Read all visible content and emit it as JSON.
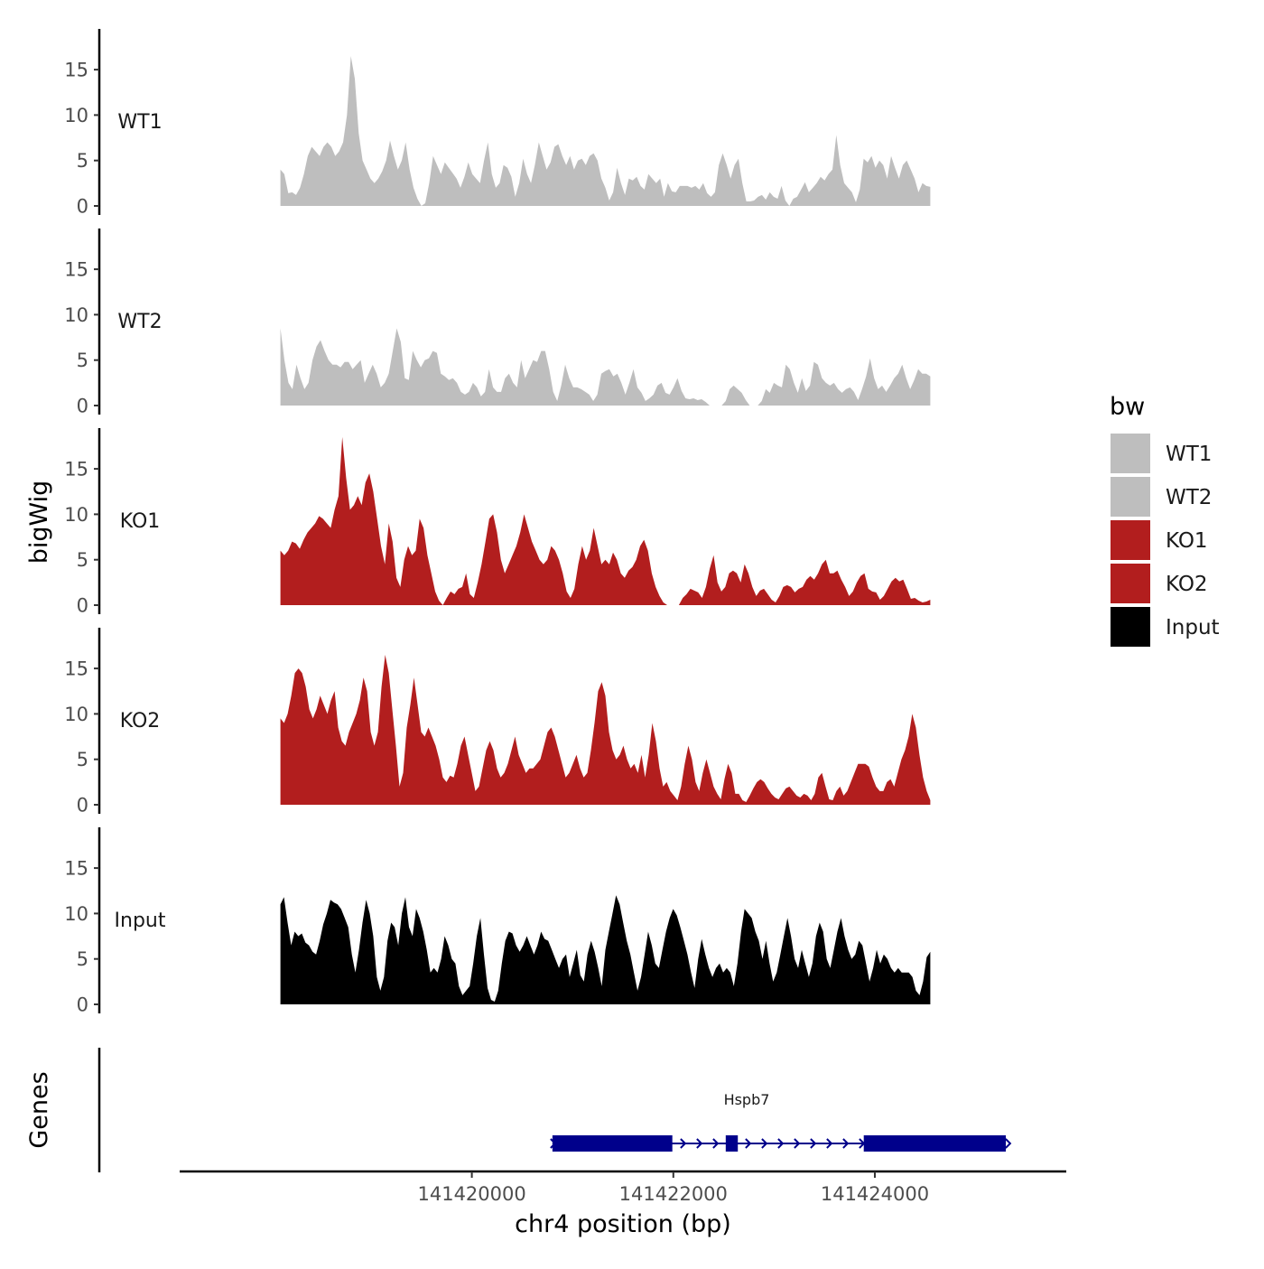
{
  "chart_data": {
    "type": "area",
    "chromosome": "chr4",
    "xlabel": "chr4 position (bp)",
    "ylabel": "bigWig",
    "genes_label": "Genes",
    "xlim": [
      141417100,
      141425900
    ],
    "x_start": 141418100,
    "x_end": 141424550,
    "x_ticks": [
      141420000,
      141422000,
      141424000
    ],
    "x_tick_labels": [
      "141420000",
      "141422000",
      "141424000"
    ],
    "ylim": [
      0,
      19.5
    ],
    "y_ticks": [
      0,
      5,
      10,
      15
    ],
    "y_tick_labels": [
      "0",
      "5",
      "10",
      "15"
    ],
    "colors": {
      "WT1": "#bebebe",
      "WT2": "#bebebe",
      "KO1": "#b21e1e",
      "KO2": "#b21e1e",
      "Input": "#000000",
      "gene": "#00008b"
    },
    "series": [
      {
        "name": "WT1",
        "values": [
          4,
          3.5,
          1.4,
          1.5,
          1.2,
          2,
          3.5,
          5.5,
          6.5,
          6,
          5.5,
          6.5,
          7,
          6.5,
          5.5,
          6,
          7,
          10,
          16.5,
          14,
          8,
          5,
          4,
          3,
          2.5,
          3,
          3.8,
          5,
          7.2,
          5.5,
          4,
          5,
          7,
          4,
          2,
          0.8,
          0,
          0.3,
          2.5,
          5.5,
          4.5,
          3.5,
          4.8,
          4.2,
          3.6,
          3,
          2,
          3.2,
          4.8,
          3.5,
          3,
          2.5,
          5,
          7,
          3.5,
          2,
          2.5,
          4.5,
          4.2,
          3.2,
          1,
          2.5,
          5.2,
          3.5,
          2.5,
          4.5,
          7,
          5.5,
          4,
          4.8,
          6.5,
          6.8,
          5.5,
          4.5,
          5.5,
          4,
          5,
          5.2,
          4.5,
          5.5,
          5.8,
          5,
          3,
          2,
          0.6,
          1.5,
          4.2,
          2.5,
          1.2,
          3,
          2.8,
          3.2,
          2.2,
          1.8,
          3.5,
          3,
          2.5,
          3,
          1,
          2.5,
          1.6,
          1.5,
          2.2,
          2.2,
          2.2,
          2,
          2.2,
          1.8,
          2.5,
          1.4,
          1,
          1.5,
          4.5,
          5.8,
          4.5,
          3,
          4.5,
          5.2,
          2.5,
          0.5,
          0.5,
          0.6,
          1,
          1.2,
          0.7,
          1.5,
          1,
          0.8,
          2.2,
          0.6,
          0,
          0.8,
          1,
          1.8,
          2.6,
          1.5,
          2,
          2.5,
          3.2,
          2.8,
          3.5,
          4,
          7.8,
          4.5,
          2.5,
          2,
          1.5,
          0.4,
          1.8,
          5.2,
          4.8,
          5.5,
          4.2,
          5,
          4.5,
          3,
          5.5,
          4.2,
          3,
          4.5,
          5,
          4,
          3,
          1.5,
          2.5,
          2.2,
          2.1
        ]
      },
      {
        "name": "WT2",
        "values": [
          8.5,
          5,
          2.5,
          1.8,
          4.5,
          3,
          1.8,
          2.5,
          5,
          6.5,
          7.2,
          6,
          5,
          4.5,
          4.5,
          4.2,
          4.8,
          4.8,
          4,
          4.5,
          5,
          2.5,
          3.5,
          4.5,
          3.5,
          2,
          2.5,
          3.5,
          6,
          8.5,
          7,
          3,
          2.8,
          6,
          5,
          4.2,
          5,
          5.2,
          6,
          5.8,
          3.5,
          3.2,
          2.8,
          3,
          2.5,
          1.5,
          1.2,
          1.5,
          2.5,
          2,
          1,
          1.5,
          4,
          2,
          1.5,
          1.5,
          3,
          3.5,
          2.5,
          2,
          5,
          3,
          4,
          5,
          4.8,
          6,
          6,
          4,
          1.5,
          0.5,
          2.2,
          4.5,
          3,
          2,
          2,
          1.8,
          1.5,
          1.2,
          0.5,
          1.2,
          3.5,
          3.8,
          4,
          3.2,
          3.5,
          2.5,
          1.2,
          2.5,
          4,
          2,
          1.4,
          0.5,
          0.8,
          1.2,
          2.2,
          2.5,
          1.4,
          1.2,
          2,
          3,
          1.6,
          0.8,
          0.7,
          0.8,
          0.6,
          0.7,
          0.4,
          0,
          0,
          0,
          0,
          0.5,
          1.8,
          2.2,
          1.8,
          1.4,
          0.6,
          0,
          0,
          0,
          0.5,
          1.8,
          1.4,
          2.5,
          2.2,
          2,
          4.5,
          4,
          2.5,
          1.4,
          3,
          1.6,
          2.2,
          4.8,
          4.5,
          3,
          2.5,
          2.2,
          2.5,
          1.8,
          1.4,
          1.8,
          2,
          1.5,
          0.6,
          1.8,
          3.2,
          5.2,
          3,
          1.8,
          2.2,
          1.5,
          2.2,
          3,
          3.5,
          4.5,
          3,
          1.8,
          2.8,
          4,
          3.5,
          3.5,
          3.2
        ]
      },
      {
        "name": "KO1",
        "values": [
          6,
          5.5,
          6,
          7,
          6.8,
          6.2,
          7.2,
          8,
          8.5,
          9,
          9.8,
          9.5,
          9,
          8.5,
          10.5,
          12,
          18.5,
          14,
          10.5,
          11,
          12,
          11,
          13.5,
          14.5,
          12.5,
          9.5,
          6.5,
          4.5,
          9,
          7,
          3,
          2,
          5,
          6.5,
          5.5,
          6,
          9.5,
          8.5,
          5.5,
          3.5,
          1.5,
          0.5,
          0,
          0.8,
          1.5,
          1.2,
          1.8,
          2,
          3.5,
          1.2,
          0.8,
          2.5,
          4.5,
          7,
          9.5,
          10,
          8,
          5,
          3.5,
          4.5,
          5.5,
          6.5,
          8,
          10,
          8.5,
          7,
          6,
          5,
          4.5,
          5,
          6.5,
          6,
          5,
          3.5,
          1.5,
          0.8,
          1.8,
          4.5,
          6.5,
          5,
          6,
          8.5,
          6.5,
          4.5,
          5,
          4.5,
          5.8,
          5,
          3.5,
          3,
          3.8,
          4.2,
          5,
          6.5,
          7.2,
          6,
          3.5,
          2,
          1,
          0.3,
          0,
          0,
          0,
          0,
          0.8,
          1.2,
          1.8,
          1.6,
          1.4,
          0.8,
          2,
          4,
          5.5,
          2.5,
          1.5,
          2,
          3.5,
          3.8,
          3.5,
          2.5,
          4.5,
          3.5,
          2,
          1,
          1.6,
          1.8,
          1.2,
          0.6,
          0.3,
          1,
          2,
          2.2,
          2,
          1.4,
          1.8,
          2,
          2.8,
          3.2,
          2.8,
          3.5,
          4.5,
          5,
          3.5,
          3.5,
          3.8,
          2.8,
          2,
          1,
          1.5,
          2.5,
          3.2,
          3.5,
          1.8,
          1.5,
          1.4,
          0.6,
          1,
          1.8,
          2.6,
          3,
          2.6,
          2.8,
          1.8,
          0.7,
          0.8,
          0.5,
          0.3,
          0.4,
          0.6
        ]
      },
      {
        "name": "KO2",
        "values": [
          9.5,
          9,
          10,
          12,
          14.5,
          15,
          14.5,
          13,
          10.5,
          9.5,
          10.5,
          12,
          11,
          10,
          11.5,
          12.5,
          8.5,
          7,
          6.5,
          8,
          9,
          10,
          11.5,
          14,
          12.5,
          8,
          6.5,
          8,
          13,
          16.5,
          14.5,
          10.5,
          6.5,
          2,
          3.5,
          8.5,
          11,
          14,
          11,
          8,
          7.5,
          8.5,
          7.5,
          6.5,
          5,
          3,
          2.5,
          3.2,
          3,
          4.5,
          6.5,
          7.5,
          5.5,
          3.5,
          1.5,
          2,
          4,
          6,
          7,
          6,
          4,
          3,
          3.5,
          4.5,
          6,
          7.5,
          5.5,
          4.5,
          3.5,
          4,
          4,
          4.5,
          5,
          6.5,
          8,
          8.5,
          7.5,
          6,
          4.5,
          3,
          3.5,
          4.5,
          5.5,
          4,
          3,
          3.5,
          6,
          9,
          12.5,
          13.5,
          12,
          8,
          6,
          5,
          5.5,
          6.5,
          5,
          4,
          4.5,
          3.5,
          5.5,
          3,
          5.5,
          9,
          7,
          4,
          2,
          2.5,
          1.5,
          1,
          0.5,
          2,
          4.5,
          6.5,
          5,
          2.5,
          1.5,
          3.5,
          5,
          3.5,
          2,
          1.2,
          0.6,
          2.8,
          4.5,
          3.5,
          1.2,
          1.2,
          0.5,
          0.3,
          1,
          1.8,
          2.5,
          2.8,
          2.5,
          1.8,
          1.2,
          0.8,
          0.6,
          1.2,
          1.8,
          2,
          1.5,
          1,
          0.8,
          1.2,
          1,
          0.5,
          1.2,
          3,
          3.5,
          2,
          0.6,
          0.5,
          1.5,
          2,
          1,
          1.5,
          2.5,
          3.5,
          4.5,
          4.5,
          4.5,
          4.2,
          3,
          2,
          1.5,
          1.5,
          2.5,
          2.8,
          2,
          3.5,
          5,
          6,
          7.5,
          10,
          8.5,
          5.5,
          3,
          1.5,
          0.5
        ]
      },
      {
        "name": "Input",
        "values": [
          11,
          11.8,
          9,
          6.5,
          8,
          7.5,
          7.8,
          6.8,
          6.5,
          5.8,
          5.5,
          7,
          8.8,
          10,
          11.5,
          11.2,
          11,
          10.5,
          9.5,
          8.5,
          5.5,
          3.5,
          6,
          9,
          11.5,
          10,
          7.5,
          3,
          1.5,
          3,
          7,
          9,
          8.5,
          6.5,
          10,
          11.8,
          8.5,
          7.5,
          10.5,
          9.5,
          8,
          6,
          3.5,
          4,
          3.5,
          5,
          7.5,
          6.5,
          5,
          4.5,
          2,
          1,
          1.5,
          2,
          4.5,
          7.5,
          9.5,
          5.5,
          1.8,
          0.5,
          0.3,
          1.5,
          4.5,
          7,
          8,
          7.8,
          6.5,
          5.8,
          6.5,
          7.5,
          6.5,
          5.5,
          6.5,
          8,
          7.2,
          7,
          6,
          5,
          4,
          5,
          5.5,
          3,
          4.5,
          6,
          3.2,
          2.5,
          5.5,
          7,
          5.8,
          4,
          2,
          6,
          8,
          10,
          12,
          11,
          9,
          7,
          5.5,
          3.5,
          1.5,
          3,
          5.5,
          8,
          6.5,
          4.5,
          4,
          6,
          8,
          9.5,
          10.5,
          9.8,
          8.5,
          7,
          5.5,
          3.5,
          1.8,
          5,
          7.2,
          5.5,
          4,
          3,
          4,
          4.5,
          3.5,
          4,
          3.5,
          2,
          4.5,
          8,
          10.5,
          10,
          9.5,
          8,
          7,
          5,
          7,
          4.5,
          2.5,
          3.5,
          5.5,
          7.5,
          9.5,
          7.5,
          5,
          4,
          6,
          4.5,
          3,
          4.5,
          7.5,
          9,
          8,
          5,
          4,
          6,
          8,
          9.5,
          7.5,
          6,
          5,
          5.5,
          7,
          6.5,
          4.5,
          2.5,
          4,
          6,
          4.5,
          5.5,
          5,
          4,
          3.5,
          4,
          3.5,
          3.5,
          3.5,
          3,
          1.5,
          1,
          2.5,
          5.2,
          5.8
        ]
      }
    ],
    "legend": {
      "title": "bw",
      "entries": [
        {
          "label": "WT1",
          "color": "#bebebe"
        },
        {
          "label": "WT2",
          "color": "#bebebe"
        },
        {
          "label": "KO1",
          "color": "#b21e1e"
        },
        {
          "label": "KO2",
          "color": "#b21e1e"
        },
        {
          "label": "Input",
          "color": "#000000"
        }
      ]
    },
    "gene": {
      "name": "Hspb7",
      "start": 141420800,
      "end": 141425300,
      "exons": [
        [
          141420800,
          141421990
        ],
        [
          141422520,
          141422640
        ],
        [
          141423890,
          141425300
        ]
      ]
    }
  }
}
